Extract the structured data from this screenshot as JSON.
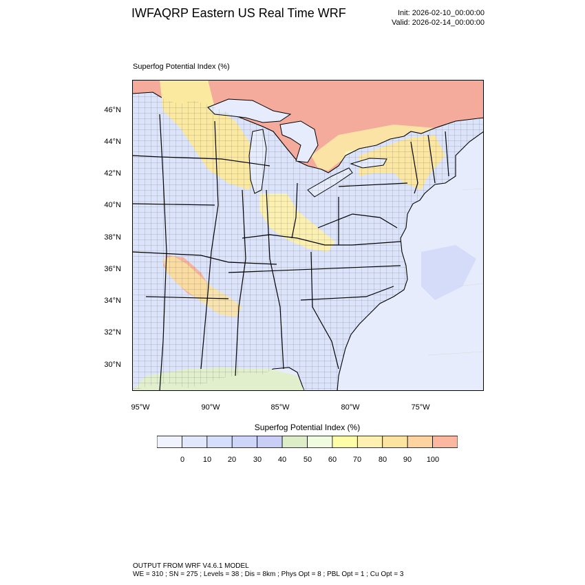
{
  "header": {
    "title": "IWFAQRP Eastern US Real Time WRF",
    "init": "Init: 2026-02-10_00:00:00",
    "valid": "Valid: 2026-02-14_00:00:00"
  },
  "map": {
    "field_title": "Superfog Potential Index   (%)",
    "projection": "lambert-conformal",
    "extent": {
      "lon": [
        -95.4,
        -71.2
      ],
      "lat": [
        28.5,
        47.8
      ]
    },
    "lat_ticks": [
      "46°N",
      "44°N",
      "42°N",
      "40°N",
      "38°N",
      "36°N",
      "34°N",
      "32°N",
      "30°N"
    ],
    "lon_ticks": [
      "95°W",
      "90°W",
      "85°W",
      "80°W",
      "75°W"
    ],
    "boundaries": [
      "states",
      "counties",
      "coastlines",
      "great-lakes"
    ],
    "colors": {
      "land_low": "#dce4fb",
      "water": "#e6ecfc",
      "canada": "#f4a89a",
      "high": "#f4b69a",
      "mid": "#fbe9a0",
      "yellow": "#f8f5b0",
      "green": "#dfedc8"
    }
  },
  "colorbar": {
    "title": "Superfog Potential Index  (%)",
    "labels": [
      "0",
      "10",
      "20",
      "30",
      "40",
      "50",
      "60",
      "70",
      "80",
      "90",
      "100"
    ],
    "colors": [
      "#f0f3fb",
      "#e2e8fb",
      "#d5defa",
      "#cdd6f8",
      "#c9cef6",
      "#dcedc8",
      "#f1fbdf",
      "#fdfda8",
      "#fdf0b0",
      "#fde3a0",
      "#fdd3a0",
      "#fbb7a0"
    ]
  },
  "footer": {
    "line1": "OUTPUT FROM WRF V4.6.1 MODEL",
    "line2": "WE = 310 ; SN = 275 ; Levels = 38 ; Dis = 8km ; Phys Opt = 8 ; PBL Opt = 1 ; Cu Opt = 3"
  }
}
